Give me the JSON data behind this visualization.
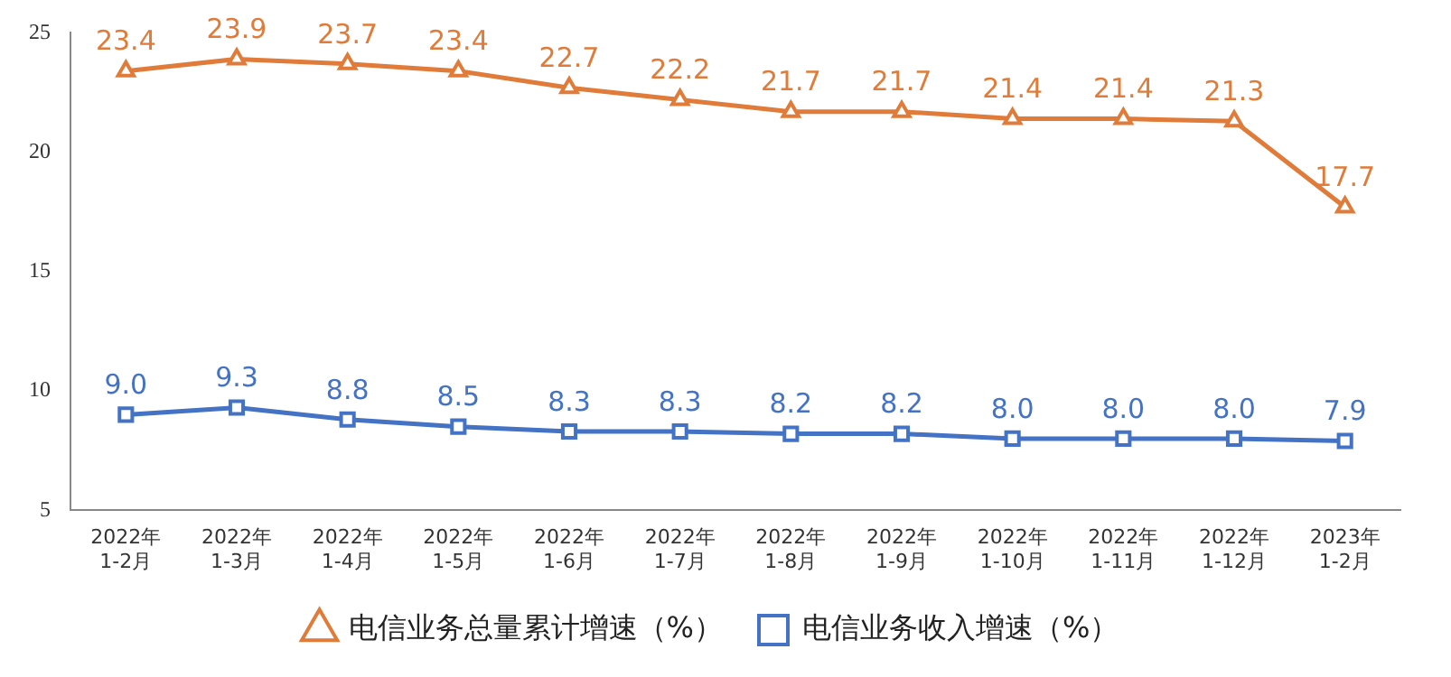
{
  "chart_data": {
    "type": "line",
    "categories": [
      "2022年\n1-2月",
      "2022年\n1-3月",
      "2022年\n1-4月",
      "2022年\n1-5月",
      "2022年\n1-6月",
      "2022年\n1-7月",
      "2022年\n1-8月",
      "2022年\n1-9月",
      "2022年\n1-10月",
      "2022年\n1-11月",
      "2022年\n1-12月",
      "2023年\n1-2月"
    ],
    "series": [
      {
        "name": "电信业务总量累计增速（%）",
        "color": "#e07b39",
        "marker": "triangle",
        "values": [
          23.4,
          23.9,
          23.7,
          23.4,
          22.7,
          22.2,
          21.7,
          21.7,
          21.4,
          21.4,
          21.3,
          17.7
        ],
        "value_labels": [
          "23.4",
          "23.9",
          "23.7",
          "23.4",
          "22.7",
          "22.2",
          "21.7",
          "21.7",
          "21.4",
          "21.4",
          "21.3",
          "17.7"
        ]
      },
      {
        "name": "电信业务收入增速（%）",
        "color": "#4472c4",
        "marker": "square",
        "values": [
          9.0,
          9.3,
          8.8,
          8.5,
          8.3,
          8.3,
          8.2,
          8.2,
          8.0,
          8.0,
          8.0,
          7.9
        ],
        "value_labels": [
          "9.0",
          "9.3",
          "8.8",
          "8.5",
          "8.3",
          "8.3",
          "8.2",
          "8.2",
          "8.0",
          "8.0",
          "8.0",
          "7.9"
        ]
      }
    ],
    "ylim": [
      5,
      25
    ],
    "yticks": [
      5,
      10,
      15,
      20,
      25
    ],
    "grid": false,
    "legend": "bottom",
    "line_style": "solid"
  }
}
